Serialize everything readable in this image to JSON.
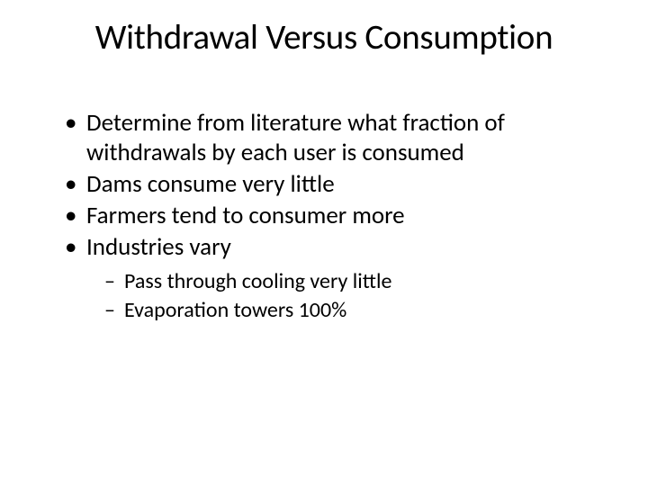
{
  "slide": {
    "title": "Withdrawal Versus Consumption",
    "bullets": [
      {
        "text": "Determine from literature what fraction of withdrawals by each user is consumed"
      },
      {
        "text": "Dams consume very little"
      },
      {
        "text": "Farmers tend to consumer more"
      },
      {
        "text": "Industries vary"
      }
    ],
    "sub_bullets": [
      {
        "text": "Pass through cooling very little"
      },
      {
        "text": "Evaporation towers 100%"
      }
    ]
  },
  "style": {
    "background_color": "#ffffff",
    "text_color": "#000000",
    "title_fontsize": 39,
    "bullet_fontsize": 27,
    "sub_bullet_fontsize": 24,
    "font_family": "Calibri"
  }
}
